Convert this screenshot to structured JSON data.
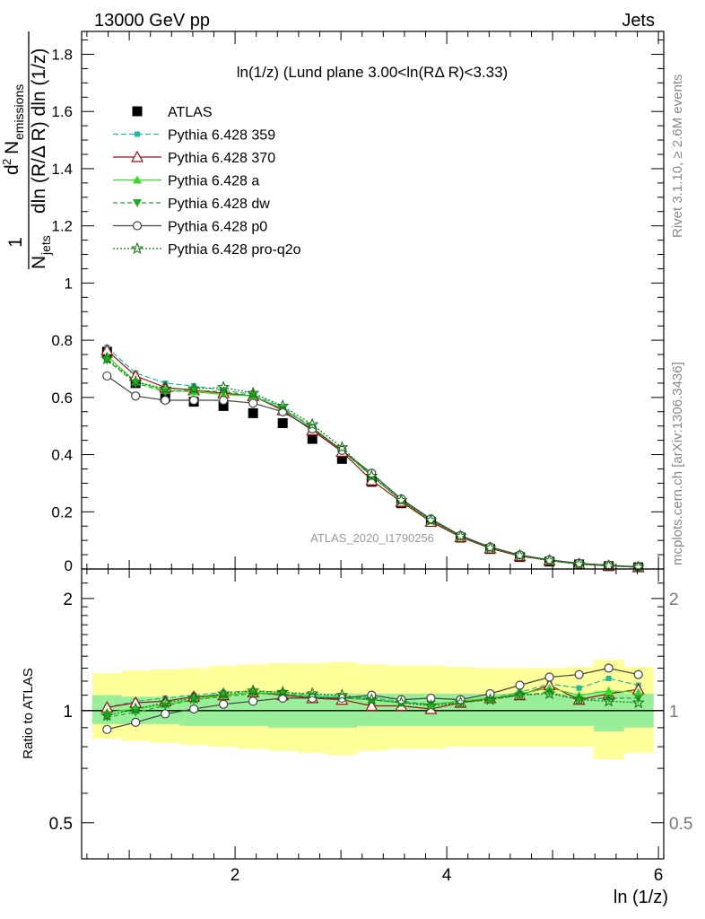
{
  "header": {
    "left": "13000 GeV pp",
    "right": "Jets"
  },
  "side_labels": {
    "rivet": "Rivet 3.1.10, ≥ 2.6M events",
    "mcplots": "mcplots.cern.ch [arXiv:1306.3436]"
  },
  "watermark": "ATLAS_2020_I1790256",
  "chart_data": [
    {
      "type": "line",
      "title": "ln(1/z) (Lund plane 3.00<ln(RΔ R)<3.33)",
      "xlabel": "ln (1/z)",
      "ylabel": "1/N_jets d²N_emissions / dln(R/ΔR) dln(1/z)",
      "xlim": [
        0.55,
        6.05
      ],
      "ylim": [
        0,
        1.88
      ],
      "x_ticks": [
        2,
        4,
        6
      ],
      "y_ticks": [
        0.2,
        0.4,
        0.6,
        0.8,
        1,
        1.2,
        1.4,
        1.6,
        1.8
      ],
      "y_tick_labels": [
        "0.2",
        "0.4",
        "0.6",
        "0.8",
        "1",
        "1.2",
        "1.4",
        "1.6",
        "1.8"
      ],
      "bottom_tick_label": "0",
      "legend_position": "top-left",
      "x": [
        0.79,
        1.06,
        1.34,
        1.61,
        1.89,
        2.17,
        2.45,
        2.73,
        3.01,
        3.29,
        3.57,
        3.85,
        4.13,
        4.41,
        4.69,
        4.97,
        5.25,
        5.53,
        5.81
      ],
      "series": [
        {
          "name": "ATLAS",
          "color": "#000000",
          "marker": "square",
          "values": [
            0.76,
            0.65,
            0.6,
            0.585,
            0.57,
            0.545,
            0.51,
            0.455,
            0.385,
            0.305,
            0.23,
            0.165,
            0.11,
            0.07,
            0.042,
            0.026,
            0.016,
            0.01,
            0.006
          ]
        },
        {
          "name": "Pythia 6.428 359",
          "color": "#1abc9c",
          "marker": "square-small",
          "dash": "6,3",
          "values": [
            0.775,
            0.685,
            0.65,
            0.64,
            0.625,
            0.61,
            0.565,
            0.495,
            0.415,
            0.33,
            0.24,
            0.17,
            0.115,
            0.075,
            0.048,
            0.03,
            0.018,
            0.012,
            0.007
          ]
        },
        {
          "name": "Pythia 6.428 370",
          "color": "#a01010",
          "marker": "triangle-open",
          "dash": "",
          "values": [
            0.765,
            0.675,
            0.635,
            0.625,
            0.615,
            0.605,
            0.555,
            0.485,
            0.41,
            0.31,
            0.235,
            0.165,
            0.112,
            0.072,
            0.045,
            0.03,
            0.017,
            0.011,
            0.0065
          ]
        },
        {
          "name": "Pythia 6.428 a",
          "color": "#33dd22",
          "marker": "triangle",
          "dash": "",
          "values": [
            0.745,
            0.655,
            0.625,
            0.62,
            0.61,
            0.605,
            0.56,
            0.495,
            0.415,
            0.325,
            0.24,
            0.17,
            0.115,
            0.075,
            0.048,
            0.03,
            0.018,
            0.011,
            0.0065
          ]
        },
        {
          "name": "Pythia 6.428 dw",
          "color": "#22aa22",
          "marker": "triangle-down",
          "dash": "5,3",
          "values": [
            0.73,
            0.65,
            0.62,
            0.625,
            0.62,
            0.605,
            0.56,
            0.495,
            0.415,
            0.325,
            0.24,
            0.17,
            0.115,
            0.075,
            0.047,
            0.029,
            0.017,
            0.011,
            0.0065
          ]
        },
        {
          "name": "Pythia 6.428 p0",
          "color": "#444444",
          "marker": "circle-open",
          "dash": "",
          "values": [
            0.675,
            0.605,
            0.59,
            0.59,
            0.59,
            0.58,
            0.55,
            0.49,
            0.415,
            0.335,
            0.245,
            0.175,
            0.117,
            0.077,
            0.049,
            0.032,
            0.02,
            0.013,
            0.0075
          ]
        },
        {
          "name": "Pythia 6.428 pro-q2o",
          "color": "#117711",
          "marker": "star",
          "dash": "2,2",
          "values": [
            0.735,
            0.655,
            0.63,
            0.63,
            0.635,
            0.615,
            0.57,
            0.505,
            0.425,
            0.325,
            0.24,
            0.17,
            0.115,
            0.074,
            0.047,
            0.029,
            0.017,
            0.011,
            0.0063
          ]
        }
      ]
    },
    {
      "type": "line",
      "title": "",
      "xlabel": "ln (1/z)",
      "ylabel": "Ratio to ATLAS",
      "xlim": [
        0.55,
        6.05
      ],
      "ylim": [
        0.4,
        2.4
      ],
      "log_y": true,
      "y_ticks": [
        0.5,
        1,
        2
      ],
      "y_tick_labels": [
        "0.5",
        "1",
        "2"
      ],
      "x_ticks": [
        2,
        4,
        6
      ],
      "x_tick_labels": [
        "2",
        "4",
        "6"
      ],
      "bin_edges": [
        0.65,
        0.93,
        1.2,
        1.48,
        1.75,
        2.03,
        2.31,
        2.59,
        2.87,
        3.15,
        3.43,
        3.71,
        3.99,
        4.27,
        4.55,
        4.83,
        5.11,
        5.39,
        5.67,
        5.95
      ],
      "band_stat_low": [
        0.92,
        0.92,
        0.92,
        0.91,
        0.91,
        0.91,
        0.9,
        0.9,
        0.9,
        0.91,
        0.91,
        0.91,
        0.91,
        0.91,
        0.91,
        0.91,
        0.91,
        0.88,
        0.9
      ],
      "band_stat_high": [
        1.1,
        1.09,
        1.09,
        1.1,
        1.11,
        1.11,
        1.11,
        1.11,
        1.11,
        1.11,
        1.11,
        1.11,
        1.11,
        1.11,
        1.11,
        1.11,
        1.11,
        1.13,
        1.11
      ],
      "band_tot_low": [
        0.84,
        0.83,
        0.82,
        0.81,
        0.8,
        0.79,
        0.78,
        0.77,
        0.76,
        0.78,
        0.79,
        0.79,
        0.8,
        0.8,
        0.8,
        0.8,
        0.8,
        0.74,
        0.77
      ],
      "band_tot_high": [
        1.26,
        1.28,
        1.29,
        1.3,
        1.32,
        1.33,
        1.34,
        1.34,
        1.35,
        1.33,
        1.32,
        1.32,
        1.31,
        1.3,
        1.3,
        1.3,
        1.31,
        1.37,
        1.31
      ],
      "series": [
        {
          "name": "Pythia 6.428 359",
          "values": [
            1.02,
            1.06,
            1.08,
            1.1,
            1.12,
            1.13,
            1.12,
            1.1,
            1.09,
            1.08,
            1.06,
            1.04,
            1.06,
            1.08,
            1.12,
            1.18,
            1.15,
            1.22,
            1.17
          ]
        },
        {
          "name": "Pythia 6.428 370",
          "values": [
            1.02,
            1.05,
            1.06,
            1.09,
            1.1,
            1.12,
            1.1,
            1.08,
            1.07,
            1.03,
            1.03,
            1.01,
            1.05,
            1.08,
            1.1,
            1.17,
            1.07,
            1.11,
            1.14
          ]
        },
        {
          "name": "Pythia 6.428 a",
          "values": [
            0.99,
            1.01,
            1.04,
            1.07,
            1.1,
            1.12,
            1.11,
            1.09,
            1.08,
            1.07,
            1.05,
            1.04,
            1.06,
            1.08,
            1.11,
            1.15,
            1.1,
            1.13,
            1.12
          ]
        },
        {
          "name": "Pythia 6.428 dw",
          "values": [
            0.96,
            0.99,
            1.03,
            1.07,
            1.09,
            1.11,
            1.11,
            1.09,
            1.08,
            1.07,
            1.05,
            1.04,
            1.05,
            1.07,
            1.1,
            1.12,
            1.07,
            1.08,
            1.08
          ]
        },
        {
          "name": "Pythia 6.428 p0",
          "values": [
            0.89,
            0.93,
            0.98,
            1.01,
            1.04,
            1.06,
            1.08,
            1.08,
            1.08,
            1.1,
            1.07,
            1.08,
            1.07,
            1.11,
            1.17,
            1.23,
            1.25,
            1.3,
            1.25
          ]
        },
        {
          "name": "Pythia 6.428 pro-q2o",
          "values": [
            0.97,
            1.01,
            1.05,
            1.08,
            1.11,
            1.13,
            1.12,
            1.11,
            1.1,
            1.07,
            1.05,
            1.03,
            1.05,
            1.07,
            1.1,
            1.11,
            1.07,
            1.06,
            1.05
          ]
        }
      ]
    }
  ]
}
